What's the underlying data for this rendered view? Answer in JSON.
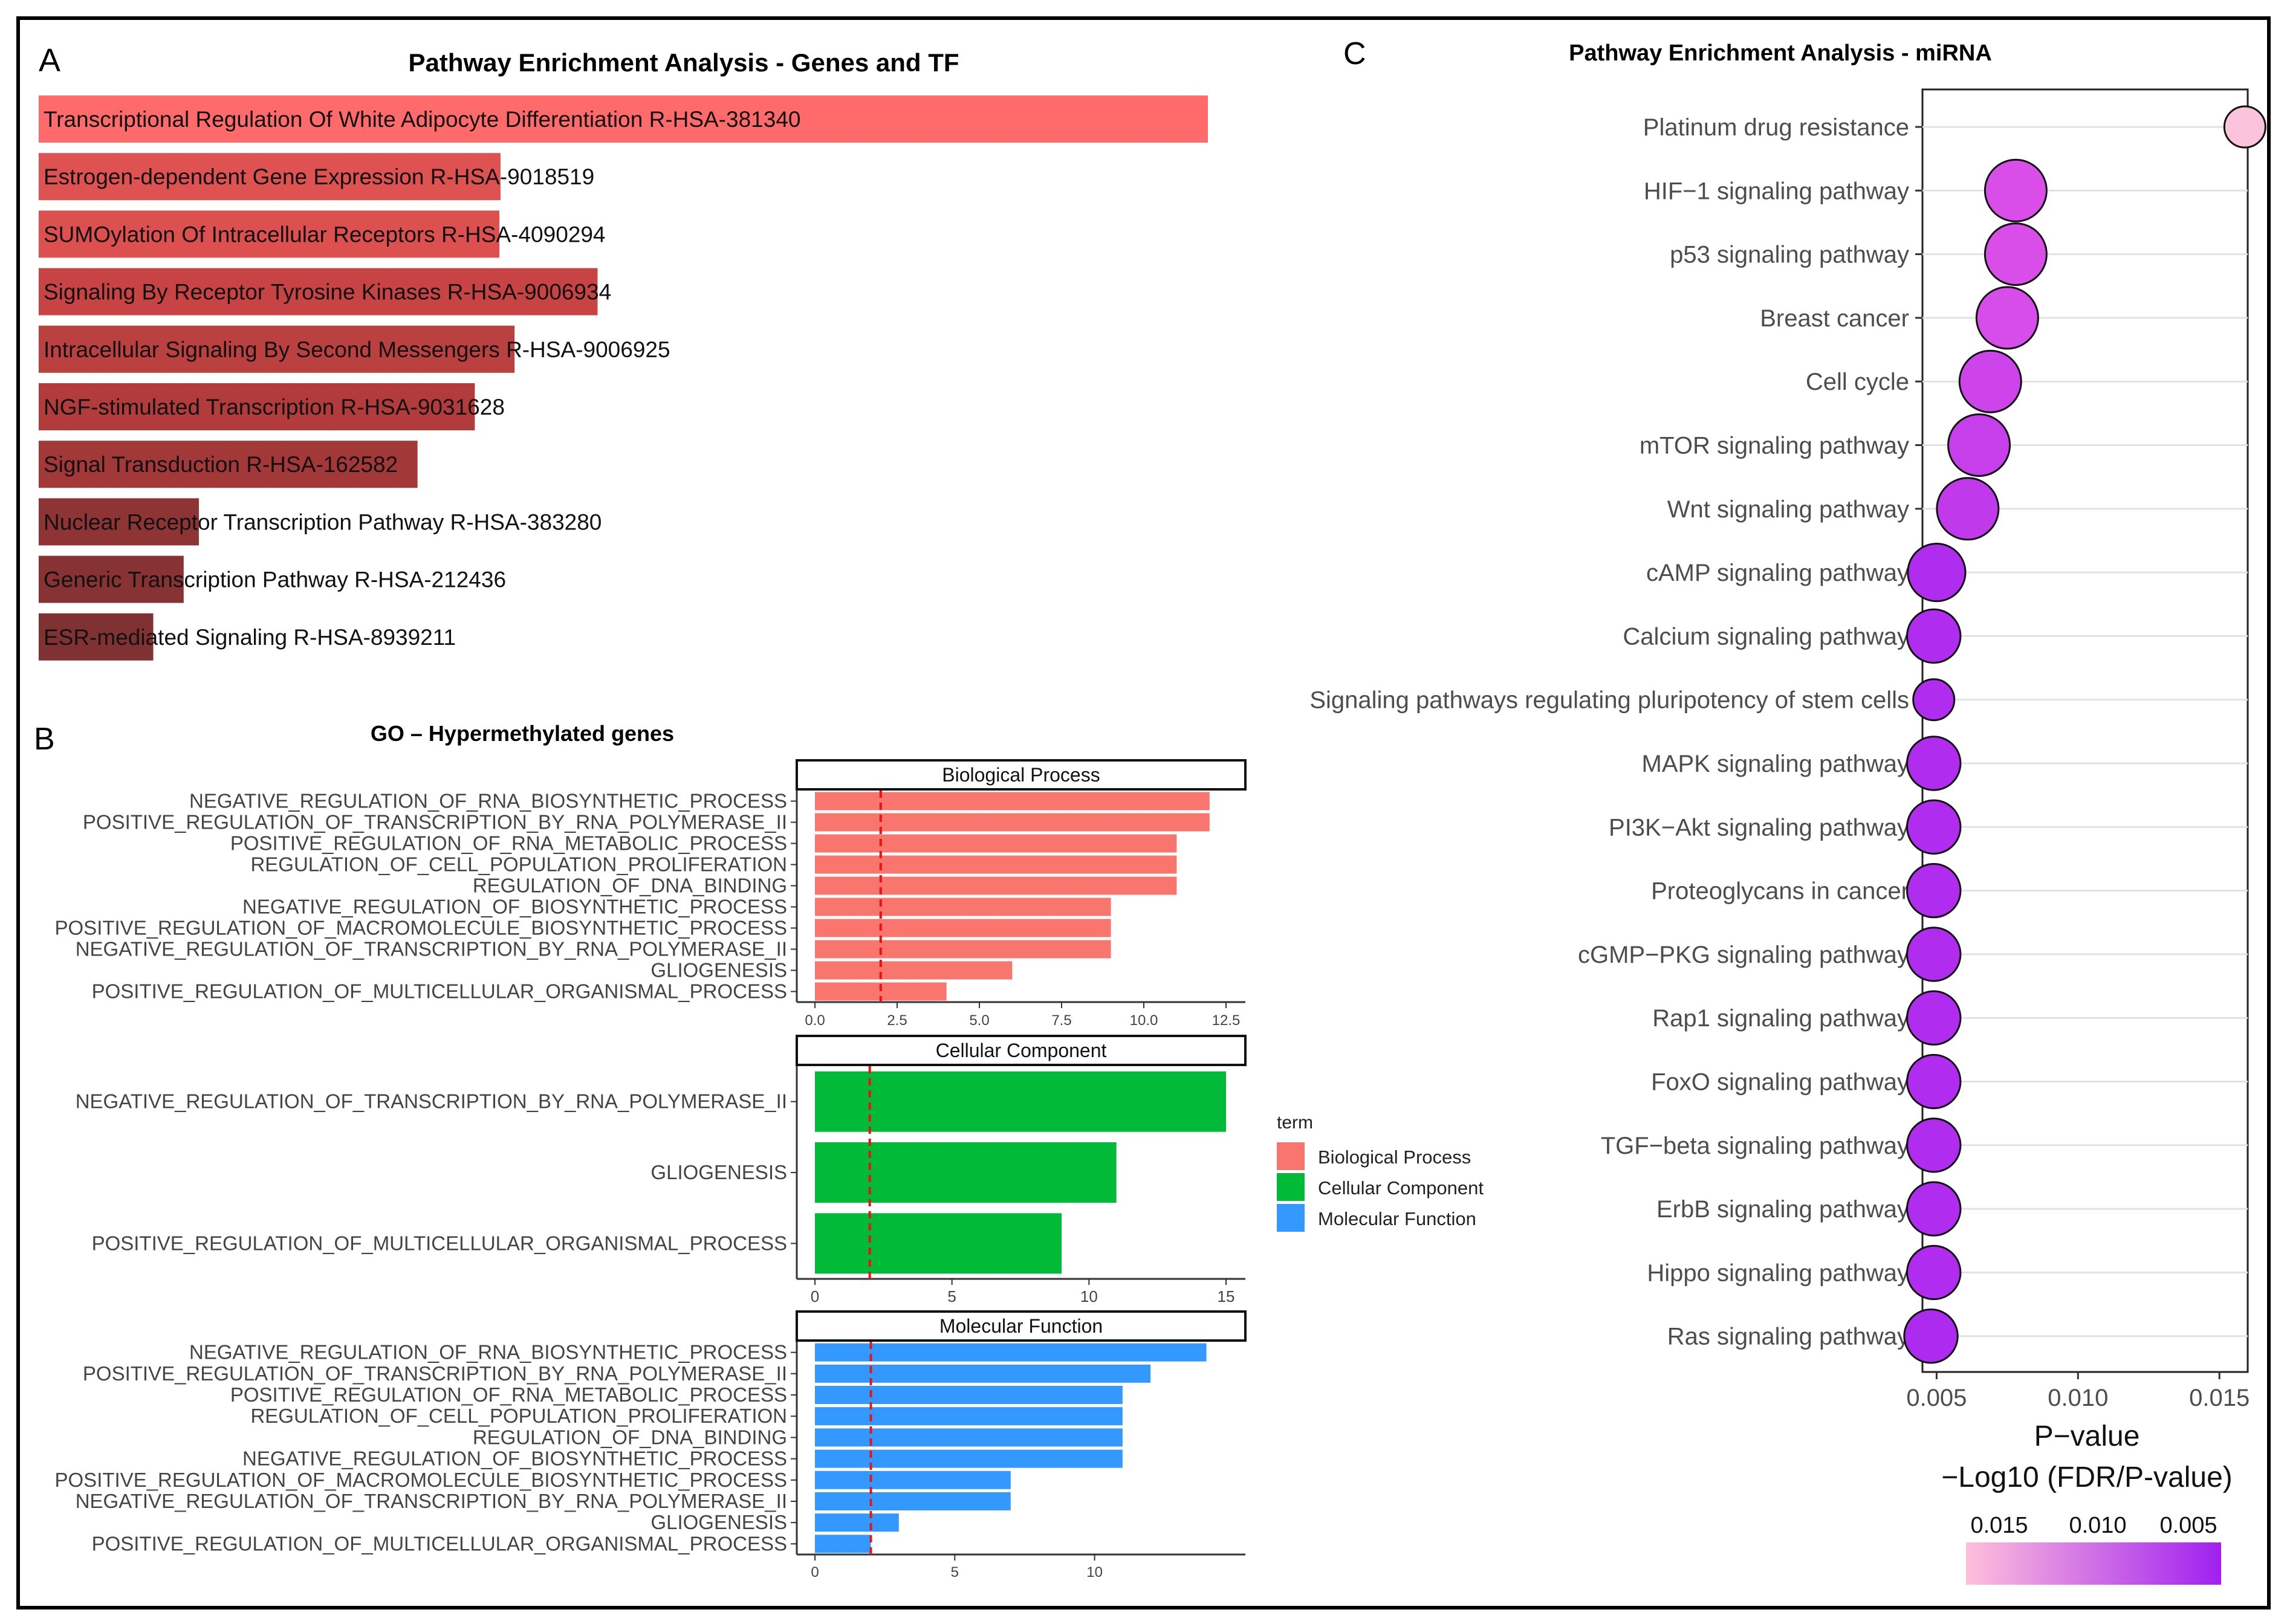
{
  "panels": {
    "a": {
      "letter": "A",
      "chart_data": {
        "type": "bar",
        "orientation": "horizontal",
        "title": "Pathway Enrichment Analysis - Genes and TF",
        "categories": [
          "Transcriptional Regulation Of White Adipocyte Differentiation R-HSA-381340",
          "Estrogen-dependent Gene Expression R-HSA-9018519",
          "SUMOylation Of Intracellular Receptors R-HSA-4090294",
          "Signaling By Receptor Tyrosine Kinases R-HSA-9006934",
          "Intracellular Signaling By Second Messengers R-HSA-9006925",
          "NGF-stimulated Transcription R-HSA-9031628",
          "Signal Transduction R-HSA-162582",
          "Nuclear Receptor Transcription Pathway R-HSA-383280",
          "Generic Transcription Pathway R-HSA-212436",
          "ESR-mediated Signaling R-HSA-8939211"
        ],
        "values": [
          1.0,
          0.395,
          0.394,
          0.478,
          0.407,
          0.373,
          0.324,
          0.137,
          0.124,
          0.098
        ],
        "colors": [
          "#ff6b6b",
          "#df5252",
          "#dd5050",
          "#c84444",
          "#bb4040",
          "#b23c3c",
          "#a33838",
          "#8e3434",
          "#883333",
          "#803232"
        ]
      }
    },
    "b": {
      "letter": "B",
      "title": "GO – Hypermethylated genes",
      "legend": {
        "title": "term",
        "items": [
          {
            "label": "Biological Process",
            "color": "#f8766d"
          },
          {
            "label": "Cellular Component",
            "color": "#00ba38"
          },
          {
            "label": "Molecular Function",
            "color": "#3399ff"
          }
        ]
      },
      "chart_data": [
        {
          "type": "bar",
          "orientation": "horizontal",
          "facet": "Biological Process",
          "color": "#f8766d",
          "categories": [
            "NEGATIVE_REGULATION_OF_RNA_BIOSYNTHETIC_PROCESS",
            "POSITIVE_REGULATION_OF_TRANSCRIPTION_BY_RNA_POLYMERASE_II",
            "POSITIVE_REGULATION_OF_RNA_METABOLIC_PROCESS",
            "REGULATION_OF_CELL_POPULATION_PROLIFERATION",
            "REGULATION_OF_DNA_BINDING",
            "NEGATIVE_REGULATION_OF_BIOSYNTHETIC_PROCESS",
            "POSITIVE_REGULATION_OF_MACROMOLECULE_BIOSYNTHETIC_PROCESS",
            "NEGATIVE_REGULATION_OF_TRANSCRIPTION_BY_RNA_POLYMERASE_II",
            "GLIOGENESIS",
            "POSITIVE_REGULATION_OF_MULTICELLULAR_ORGANISMAL_PROCESS"
          ],
          "values": [
            12,
            12,
            11,
            11,
            11,
            9,
            9,
            9,
            6,
            4
          ],
          "xlim": [
            0,
            12.5
          ],
          "ticks": [
            0,
            2.5,
            5,
            7.5,
            10,
            12.5
          ],
          "tick_labels": [
            "0.0",
            "2.5",
            "5.0",
            "7.5",
            "10.0",
            "12.5"
          ],
          "threshold": 2
        },
        {
          "type": "bar",
          "orientation": "horizontal",
          "facet": "Cellular Component",
          "color": "#00ba38",
          "categories": [
            "NEGATIVE_REGULATION_OF_TRANSCRIPTION_BY_RNA_POLYMERASE_II",
            "GLIOGENESIS",
            "POSITIVE_REGULATION_OF_MULTICELLULAR_ORGANISMAL_PROCESS"
          ],
          "values": [
            15,
            11,
            9
          ],
          "xlim": [
            0,
            15
          ],
          "ticks": [
            0,
            5,
            10,
            15
          ],
          "tick_labels": [
            "0",
            "5",
            "10",
            "15"
          ],
          "threshold": 2
        },
        {
          "type": "bar",
          "orientation": "horizontal",
          "facet": "Molecular Function",
          "color": "#3399ff",
          "categories": [
            "NEGATIVE_REGULATION_OF_RNA_BIOSYNTHETIC_PROCESS",
            "POSITIVE_REGULATION_OF_TRANSCRIPTION_BY_RNA_POLYMERASE_II",
            "POSITIVE_REGULATION_OF_RNA_METABOLIC_PROCESS",
            "REGULATION_OF_CELL_POPULATION_PROLIFERATION",
            "REGULATION_OF_DNA_BINDING",
            "NEGATIVE_REGULATION_OF_BIOSYNTHETIC_PROCESS",
            "POSITIVE_REGULATION_OF_MACROMOLECULE_BIOSYNTHETIC_PROCESS",
            "NEGATIVE_REGULATION_OF_TRANSCRIPTION_BY_RNA_POLYMERASE_II",
            "GLIOGENESIS",
            "POSITIVE_REGULATION_OF_MULTICELLULAR_ORGANISMAL_PROCESS"
          ],
          "values": [
            14,
            12,
            11,
            11,
            11,
            11,
            7,
            7,
            3,
            2
          ],
          "xlim": [
            0,
            14.7
          ],
          "ticks": [
            0,
            5,
            10
          ],
          "tick_labels": [
            "0",
            "5",
            "10"
          ],
          "threshold": 2
        }
      ]
    },
    "c": {
      "letter": "C",
      "chart_data": {
        "type": "scatter",
        "title": "Pathway Enrichment Analysis - miRNA",
        "xlabel": "P−value",
        "xlim": [
          0.0045,
          0.016
        ],
        "ticks": [
          0.005,
          0.01,
          0.015
        ],
        "tick_labels": [
          "0.005",
          "0.010",
          "0.015"
        ],
        "categories": [
          "Platinum drug resistance",
          "HIF−1 signaling pathway",
          "p53 signaling pathway",
          "Breast cancer",
          "Cell cycle",
          "mTOR signaling pathway",
          "Wnt signaling pathway",
          "cAMP signaling pathway",
          "Calcium signaling pathway",
          "Signaling pathways regulating pluripotency of stem cells",
          "MAPK signaling pathway",
          "PI3K−Akt signaling pathway",
          "Proteoglycans in cancer",
          "cGMP−PKG signaling pathway",
          "Rap1 signaling pathway",
          "FoxO signaling pathway",
          "TGF−beta signaling pathway",
          "ErbB signaling pathway",
          "Hippo signaling pathway",
          "Ras signaling pathway"
        ],
        "values": [
          0.0159,
          0.0078,
          0.0078,
          0.0075,
          0.0069,
          0.0065,
          0.0061,
          0.005,
          0.0049,
          0.0049,
          0.0049,
          0.0049,
          0.0049,
          0.0049,
          0.0049,
          0.0049,
          0.0049,
          0.0049,
          0.0049,
          0.0048
        ],
        "sizes": [
          1.0,
          1.5,
          1.5,
          1.5,
          1.5,
          1.5,
          1.5,
          1.4,
          1.3,
          1.0,
          1.3,
          1.3,
          1.3,
          1.3,
          1.3,
          1.3,
          1.3,
          1.3,
          1.3,
          1.3
        ],
        "colors": [
          "#fcc3dc",
          "#d94ee8",
          "#d94ee8",
          "#d64de9",
          "#cd45ea",
          "#c63feb",
          "#c03aec",
          "#b02cee",
          "#b02cee",
          "#b02cee",
          "#b02cee",
          "#b02cee",
          "#b02cee",
          "#b02cee",
          "#b02cee",
          "#b02cee",
          "#b02cee",
          "#b02cee",
          "#b02cee",
          "#ad2aef"
        ],
        "color_legend": {
          "title": "−Log10 (FDR/P-value)",
          "tick_labels": [
            "0.015",
            "0.010",
            "0.005"
          ],
          "low_color": "#ffc0dc",
          "high_color": "#a020f0"
        }
      }
    }
  }
}
